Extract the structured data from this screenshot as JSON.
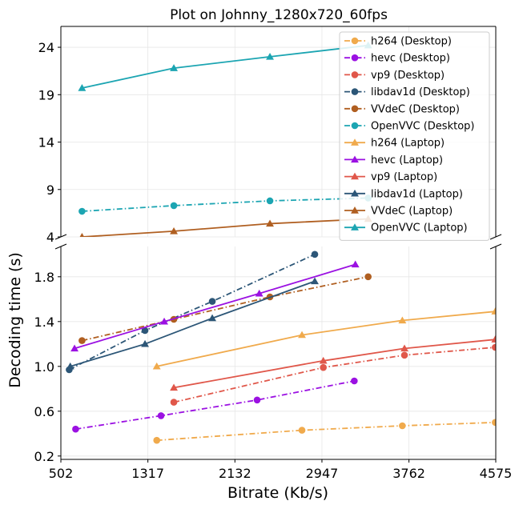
{
  "chart_data": {
    "type": "line",
    "title": "Plot on Johnny_1280x720_60fps",
    "xlabel": "Bitrate (Kb/s)",
    "ylabel": "Decoding time (s)",
    "xlim": [
      502,
      4575
    ],
    "x_ticks": [
      502,
      1317,
      2132,
      2947,
      3762,
      4575
    ],
    "upper_panel": {
      "ylim": [
        4,
        26.2
      ],
      "y_ticks": [
        4,
        9,
        14,
        19,
        24
      ]
    },
    "lower_panel": {
      "ylim": [
        0.17,
        2.07
      ],
      "y_ticks": [
        0.2,
        0.6,
        1.0,
        1.4,
        1.8
      ]
    },
    "axis_break": "between 2.07 and 4",
    "grid": true,
    "legend_position": "top-right",
    "series": [
      {
        "name": "h264 (Desktop)",
        "color": "#f0aa4c",
        "style": "dashdot",
        "marker": "circle",
        "x": [
          1400,
          2760,
          3700,
          4570
        ],
        "y": [
          0.34,
          0.43,
          0.47,
          0.5
        ]
      },
      {
        "name": "hevc (Desktop)",
        "color": "#9b11e2",
        "style": "dashdot",
        "marker": "circle",
        "x": [
          640,
          1440,
          2340,
          3250
        ],
        "y": [
          0.44,
          0.56,
          0.7,
          0.87
        ]
      },
      {
        "name": "vp9 (Desktop)",
        "color": "#e0574a",
        "style": "dashdot",
        "marker": "circle",
        "x": [
          1560,
          2960,
          3720,
          4570
        ],
        "y": [
          0.68,
          0.99,
          1.1,
          1.17
        ]
      },
      {
        "name": "libdav1d (Desktop)",
        "color": "#2c5677",
        "style": "dashdot",
        "marker": "circle",
        "x": [
          580,
          1290,
          1920,
          2880
        ],
        "y": [
          0.97,
          1.32,
          1.58,
          2.0
        ]
      },
      {
        "name": "VVdeC (Desktop)",
        "color": "#b05f21",
        "style": "dashdot",
        "marker": "circle",
        "x": [
          700,
          1560,
          2460,
          3380
        ],
        "y": [
          1.23,
          1.42,
          1.62,
          1.8
        ]
      },
      {
        "name": "OpenVVC (Desktop)",
        "color": "#1ca5b2",
        "style": "dashdot",
        "marker": "circle",
        "x": [
          700,
          1560,
          2460,
          3380
        ],
        "y": [
          6.7,
          7.3,
          7.8,
          8.1
        ]
      },
      {
        "name": "h264 (Laptop)",
        "color": "#f0aa4c",
        "style": "solid",
        "marker": "triangle",
        "x": [
          1400,
          2760,
          3700,
          4570
        ],
        "y": [
          1.0,
          1.28,
          1.41,
          1.49
        ]
      },
      {
        "name": "hevc (Laptop)",
        "color": "#9b11e2",
        "style": "solid",
        "marker": "triangle",
        "x": [
          630,
          1470,
          2360,
          3260
        ],
        "y": [
          1.16,
          1.4,
          1.65,
          1.91
        ]
      },
      {
        "name": "vp9 (Laptop)",
        "color": "#e0574a",
        "style": "solid",
        "marker": "triangle",
        "x": [
          1560,
          2960,
          3720,
          4570
        ],
        "y": [
          0.81,
          1.05,
          1.16,
          1.24
        ]
      },
      {
        "name": "libdav1d (Laptop)",
        "color": "#2c5677",
        "style": "solid",
        "marker": "triangle",
        "x": [
          590,
          1290,
          1920,
          2880
        ],
        "y": [
          1.0,
          1.2,
          1.43,
          1.76
        ]
      },
      {
        "name": "VVdeC (Laptop)",
        "color": "#b05f21",
        "style": "solid",
        "marker": "triangle",
        "x": [
          700,
          1560,
          2460,
          3380
        ],
        "y": [
          4.0,
          4.6,
          5.4,
          5.9
        ]
      },
      {
        "name": "OpenVVC (Laptop)",
        "color": "#1ca5b2",
        "style": "solid",
        "marker": "triangle",
        "x": [
          700,
          1560,
          2460,
          3380
        ],
        "y": [
          19.7,
          21.8,
          23.0,
          24.2
        ]
      }
    ]
  }
}
